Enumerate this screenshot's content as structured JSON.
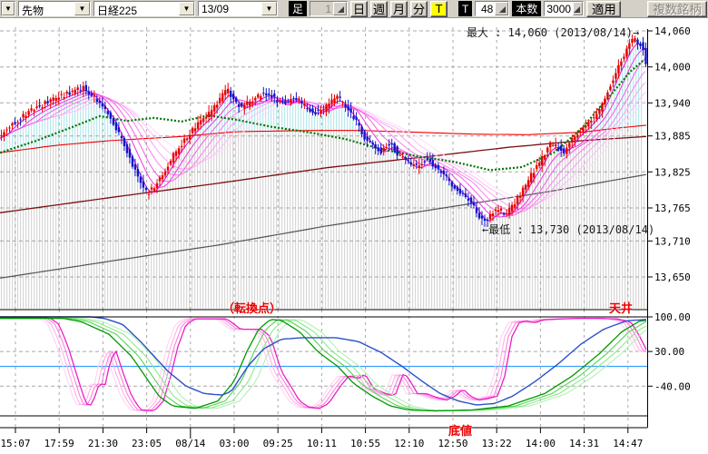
{
  "toolbar": {
    "dropdown_arrow": "▼",
    "market_select": "先物",
    "symbol_select": "日経225",
    "contract_select": "13/09",
    "bar_label": "足",
    "interval_value": "1",
    "period_buttons": [
      "日",
      "週",
      "月",
      "分",
      "T"
    ],
    "active_period": "T",
    "tick_label": "T",
    "tick_value": "48",
    "count_label": "本数",
    "count_value": "3000",
    "apply_label": "適用",
    "multi_symbol_label": "複数銘柄"
  },
  "annotations": {
    "max_label": "最大 : 14,060 (2013/08/14)→",
    "min_label": "←最低 : 13,730 (2013/08/14)",
    "turning_point": "（転換点）",
    "ceiling": "天井",
    "bottom": "底値"
  },
  "chart_data": {
    "type": "candlestick",
    "panels": [
      "price",
      "oscillator"
    ],
    "price_axis": {
      "tick_labels": [
        "14,060",
        "14,000",
        "13,940",
        "13,885",
        "13,825",
        "13,765",
        "13,710",
        "13,650"
      ],
      "tick_values": [
        14060,
        14000,
        13940,
        13885,
        13825,
        13765,
        13710,
        13650
      ],
      "range": [
        13600,
        14090
      ]
    },
    "oscillator_axis": {
      "tick_labels": [
        "100.00",
        "30.00",
        "-40.00"
      ],
      "tick_values": [
        100,
        30,
        -40
      ],
      "top_level": 100,
      "zero_level": 0,
      "bottom_level": -100
    },
    "time_axis": {
      "tick_labels": [
        "15:07",
        "17:59",
        "21:30",
        "23:05",
        "08/14",
        "03:00",
        "09:25",
        "10:11",
        "10:55",
        "12:10",
        "12:50",
        "13:22",
        "14:00",
        "14:31",
        "14:47"
      ],
      "date_tick_index": 4
    },
    "high_point": {
      "label": "最大",
      "value": 14060,
      "date": "2013/08/14"
    },
    "low_point": {
      "label": "最低",
      "value": 13730,
      "date": "2013/08/14"
    },
    "bar_count": 237,
    "series": {
      "price_path": [
        [
          0,
          13884
        ],
        [
          14,
          13906
        ],
        [
          30,
          13924
        ],
        [
          48,
          13938
        ],
        [
          66,
          13950
        ],
        [
          82,
          13960
        ],
        [
          92,
          13966
        ],
        [
          102,
          13952
        ],
        [
          112,
          13937
        ],
        [
          122,
          13916
        ],
        [
          132,
          13884
        ],
        [
          142,
          13852
        ],
        [
          152,
          13816
        ],
        [
          162,
          13789
        ],
        [
          170,
          13800
        ],
        [
          180,
          13822
        ],
        [
          192,
          13855
        ],
        [
          204,
          13880
        ],
        [
          216,
          13901
        ],
        [
          228,
          13917
        ],
        [
          240,
          13940
        ],
        [
          250,
          13963
        ],
        [
          258,
          13945
        ],
        [
          266,
          13932
        ],
        [
          274,
          13940
        ],
        [
          284,
          13950
        ],
        [
          295,
          13958
        ],
        [
          305,
          13944
        ],
        [
          315,
          13938
        ],
        [
          325,
          13950
        ],
        [
          335,
          13934
        ],
        [
          345,
          13924
        ],
        [
          355,
          13928
        ],
        [
          365,
          13944
        ],
        [
          372,
          13950
        ],
        [
          380,
          13932
        ],
        [
          390,
          13916
        ],
        [
          400,
          13886
        ],
        [
          410,
          13868
        ],
        [
          420,
          13858
        ],
        [
          430,
          13874
        ],
        [
          440,
          13852
        ],
        [
          450,
          13840
        ],
        [
          460,
          13832
        ],
        [
          470,
          13846
        ],
        [
          480,
          13832
        ],
        [
          490,
          13818
        ],
        [
          500,
          13800
        ],
        [
          510,
          13788
        ],
        [
          520,
          13772
        ],
        [
          528,
          13752
        ],
        [
          534,
          13742
        ],
        [
          542,
          13756
        ],
        [
          550,
          13762
        ],
        [
          558,
          13754
        ],
        [
          566,
          13772
        ],
        [
          574,
          13790
        ],
        [
          582,
          13812
        ],
        [
          590,
          13830
        ],
        [
          598,
          13850
        ],
        [
          606,
          13872
        ],
        [
          614,
          13866
        ],
        [
          622,
          13858
        ],
        [
          630,
          13880
        ],
        [
          638,
          13892
        ],
        [
          646,
          13902
        ],
        [
          654,
          13916
        ],
        [
          662,
          13930
        ],
        [
          670,
          13962
        ],
        [
          678,
          13990
        ],
        [
          686,
          14014
        ],
        [
          692,
          14034
        ],
        [
          698,
          14046
        ],
        [
          704,
          14040
        ],
        [
          708,
          14032
        ],
        [
          713,
          13996
        ]
      ],
      "green_ma": [
        [
          0,
          13857
        ],
        [
          40,
          13877
        ],
        [
          80,
          13900
        ],
        [
          110,
          13918
        ],
        [
          140,
          13910
        ],
        [
          170,
          13915
        ],
        [
          200,
          13909
        ],
        [
          230,
          13919
        ],
        [
          260,
          13912
        ],
        [
          300,
          13900
        ],
        [
          340,
          13891
        ],
        [
          380,
          13880
        ],
        [
          420,
          13863
        ],
        [
          460,
          13851
        ],
        [
          500,
          13842
        ],
        [
          540,
          13828
        ],
        [
          575,
          13833
        ],
        [
          610,
          13857
        ],
        [
          640,
          13896
        ],
        [
          670,
          13948
        ],
        [
          695,
          13993
        ],
        [
          713,
          14016
        ]
      ],
      "red_ma": [
        [
          0,
          13857
        ],
        [
          60,
          13869
        ],
        [
          120,
          13877
        ],
        [
          200,
          13884
        ],
        [
          260,
          13892
        ],
        [
          340,
          13894
        ],
        [
          400,
          13894
        ],
        [
          460,
          13891
        ],
        [
          520,
          13888
        ],
        [
          580,
          13887
        ],
        [
          640,
          13891
        ],
        [
          680,
          13898
        ],
        [
          713,
          13903
        ]
      ],
      "maroon_line": [
        [
          0,
          13757
        ],
        [
          120,
          13782
        ],
        [
          240,
          13806
        ],
        [
          360,
          13832
        ],
        [
          480,
          13852
        ],
        [
          560,
          13866
        ],
        [
          640,
          13877
        ],
        [
          713,
          13884
        ]
      ],
      "gray_line": [
        [
          0,
          13648
        ],
        [
          120,
          13676
        ],
        [
          240,
          13703
        ],
        [
          360,
          13735
        ],
        [
          480,
          13763
        ],
        [
          600,
          13791
        ],
        [
          713,
          13821
        ]
      ]
    },
    "oscillator_series": {
      "blue": [
        [
          0,
          100
        ],
        [
          100,
          100
        ],
        [
          115,
          97
        ],
        [
          135,
          85
        ],
        [
          155,
          50
        ],
        [
          170,
          20
        ],
        [
          185,
          -10
        ],
        [
          205,
          -40
        ],
        [
          225,
          -55
        ],
        [
          245,
          -58
        ],
        [
          255,
          -50
        ],
        [
          273,
          0
        ],
        [
          290,
          35
        ],
        [
          310,
          55
        ],
        [
          335,
          58
        ],
        [
          370,
          58
        ],
        [
          395,
          50
        ],
        [
          420,
          28
        ],
        [
          443,
          0
        ],
        [
          465,
          -30
        ],
        [
          485,
          -55
        ],
        [
          505,
          -70
        ],
        [
          525,
          -78
        ],
        [
          545,
          -75
        ],
        [
          565,
          -60
        ],
        [
          590,
          -30
        ],
        [
          615,
          5
        ],
        [
          640,
          45
        ],
        [
          665,
          75
        ],
        [
          690,
          92
        ],
        [
          713,
          95
        ]
      ],
      "green": [
        [
          0,
          97
        ],
        [
          70,
          97
        ],
        [
          90,
          90
        ],
        [
          120,
          65
        ],
        [
          145,
          20
        ],
        [
          160,
          -20
        ],
        [
          175,
          -60
        ],
        [
          190,
          -80
        ],
        [
          215,
          -85
        ],
        [
          240,
          -70
        ],
        [
          258,
          -30
        ],
        [
          272,
          30
        ],
        [
          285,
          75
        ],
        [
          298,
          95
        ],
        [
          310,
          93
        ],
        [
          330,
          70
        ],
        [
          350,
          30
        ],
        [
          372,
          0
        ],
        [
          390,
          -35
        ],
        [
          410,
          -60
        ],
        [
          430,
          -80
        ],
        [
          450,
          -88
        ],
        [
          480,
          -90
        ],
        [
          520,
          -88
        ],
        [
          560,
          -80
        ],
        [
          600,
          -55
        ],
        [
          630,
          -20
        ],
        [
          660,
          25
        ],
        [
          685,
          70
        ],
        [
          705,
          92
        ],
        [
          713,
          93
        ]
      ],
      "magenta": [
        [
          0,
          98
        ],
        [
          55,
          98
        ],
        [
          65,
          85
        ],
        [
          75,
          40
        ],
        [
          85,
          -20
        ],
        [
          92,
          -60
        ],
        [
          98,
          -85
        ],
        [
          105,
          -60
        ],
        [
          110,
          -30
        ],
        [
          115,
          -45
        ],
        [
          122,
          15
        ],
        [
          128,
          30
        ],
        [
          135,
          -10
        ],
        [
          145,
          -60
        ],
        [
          155,
          -88
        ],
        [
          170,
          -90
        ],
        [
          180,
          -70
        ],
        [
          188,
          -20
        ],
        [
          196,
          40
        ],
        [
          205,
          85
        ],
        [
          215,
          96
        ],
        [
          250,
          96
        ],
        [
          258,
          85
        ],
        [
          265,
          75
        ],
        [
          288,
          75
        ],
        [
          298,
          60
        ],
        [
          310,
          -10
        ],
        [
          322,
          -45
        ],
        [
          330,
          -70
        ],
        [
          340,
          -82
        ],
        [
          352,
          -85
        ],
        [
          362,
          -75
        ],
        [
          375,
          -40
        ],
        [
          385,
          -18
        ],
        [
          395,
          -25
        ],
        [
          402,
          -15
        ],
        [
          412,
          -45
        ],
        [
          425,
          -55
        ],
        [
          435,
          -60
        ],
        [
          445,
          -12
        ],
        [
          452,
          -30
        ],
        [
          460,
          -55
        ],
        [
          470,
          -55
        ],
        [
          480,
          -62
        ],
        [
          492,
          -68
        ],
        [
          502,
          -60
        ],
        [
          510,
          -45
        ],
        [
          518,
          -60
        ],
        [
          528,
          -68
        ],
        [
          538,
          -65
        ],
        [
          548,
          -60
        ],
        [
          556,
          -20
        ],
        [
          564,
          60
        ],
        [
          572,
          88
        ],
        [
          580,
          92
        ],
        [
          590,
          88
        ],
        [
          598,
          94
        ],
        [
          620,
          96
        ],
        [
          640,
          97
        ],
        [
          660,
          97
        ],
        [
          680,
          96
        ],
        [
          695,
          90
        ],
        [
          705,
          60
        ],
        [
          713,
          30
        ]
      ]
    },
    "colors": {
      "candle_up": "#e60000",
      "candle_down": "#1016c8",
      "ribbon": [
        "#fedcf9",
        "#fdc0f5",
        "#fba2f1",
        "#f980ec",
        "#f65ce8",
        "#f233e2",
        "#ee00dd"
      ],
      "green_ma": "#007700",
      "red_ma": "#ee0000",
      "maroon_line": "#7a1010",
      "gray_line": "#555555",
      "hatch_cyan": "#b9e9ec",
      "hatch_gray": "#d7d7d7",
      "grid": "#a8a8a8",
      "osc_blue": "#2b50c8",
      "osc_green": "#009900",
      "osc_green_light": [
        "#b4f0b4",
        "#8ce88c",
        "#58d058"
      ],
      "osc_pink": "#e820c8",
      "osc_pink_light": [
        "#ffd4f2",
        "#ffb0e8",
        "#ff80dc"
      ],
      "zero_line": "#3aa0ff",
      "frame": "#000000",
      "annotation_red": "#ee0000"
    }
  }
}
